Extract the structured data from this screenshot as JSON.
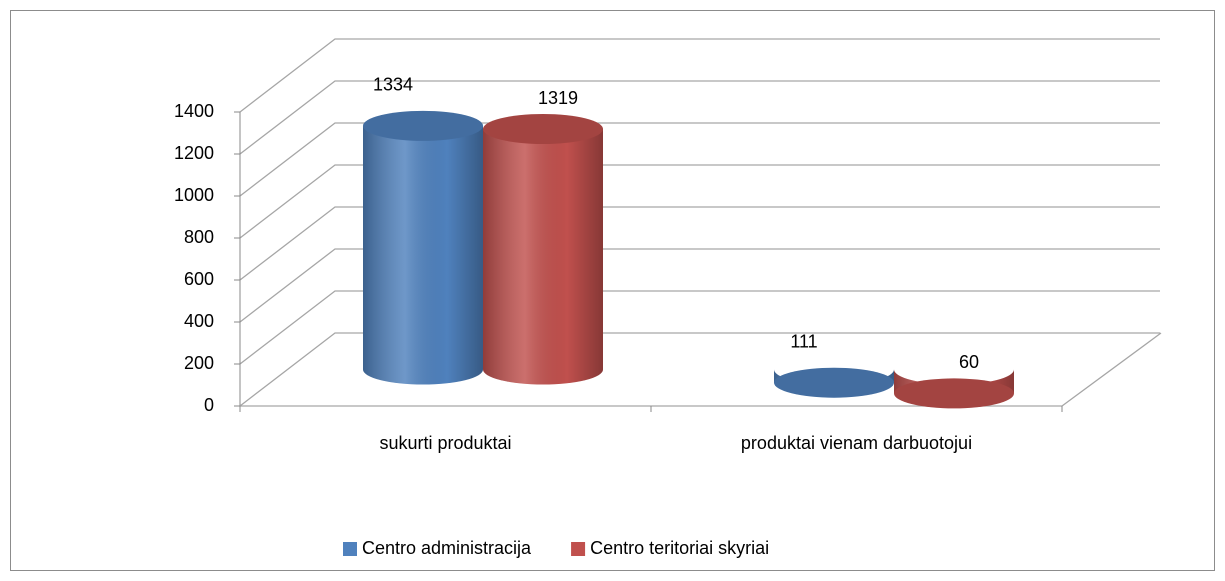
{
  "chart_data": {
    "type": "bar",
    "categories": [
      "sukurti produktai",
      "produktai vienam darbuotojui"
    ],
    "series": [
      {
        "name": "Centro administracija",
        "color": "#4f81bd",
        "values": [
          1334,
          111
        ]
      },
      {
        "name": "Centro teritoriai skyriai",
        "color": "#c0504d",
        "values": [
          1319,
          60
        ]
      }
    ],
    "ylim": [
      0,
      1400
    ],
    "yticks": [
      0,
      200,
      400,
      600,
      800,
      1000,
      1200,
      1400
    ],
    "grid": true,
    "legend": "bottom"
  }
}
